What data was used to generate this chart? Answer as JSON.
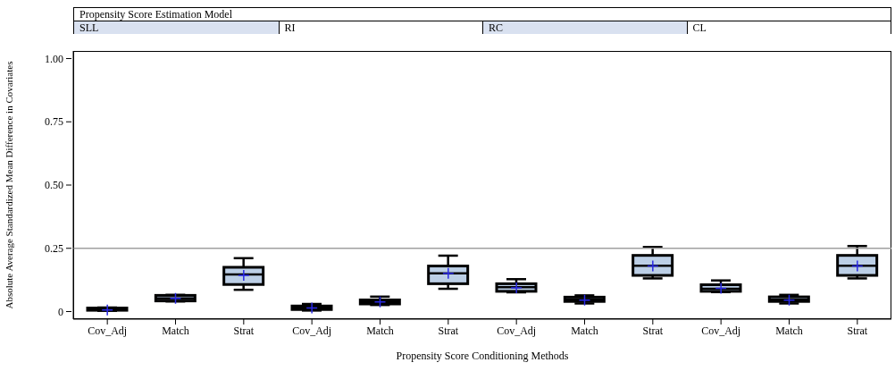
{
  "chart_data": {
    "type": "box",
    "title": "Propensity Score Estimation Model",
    "annotations": [
      "SLL",
      "RI",
      "RC",
      "CL"
    ],
    "xlabel": "Propensity Score Conditioning Methods",
    "ylabel": "Absolute Average Standardized Mean Difference in Covariates",
    "categories": [
      "Cov_Adj",
      "Match",
      "Strat",
      "Cov_Adj",
      "Match",
      "Strat",
      "Cov_Adj",
      "Match",
      "Strat",
      "Cov_Adj",
      "Match",
      "Strat"
    ],
    "color": "#bccfe6",
    "ylim": [
      -0.03,
      1.03
    ],
    "yticks": [
      0,
      0.25,
      {
        "value": 0.5,
        "label": "0.50"
      },
      0.75,
      {
        "value": 1,
        "label": "1.00"
      }
    ],
    "ref_lines": [
      {
        "axis": "y",
        "value": 0.25,
        "color": "#a0a0a0"
      }
    ],
    "boxes": [
      {
        "low": 0.003,
        "q1": 0.005,
        "median": 0.01,
        "q3": 0.014,
        "high": 0.016,
        "mean": 0.006
      },
      {
        "low": 0.04,
        "q1": 0.042,
        "median": 0.052,
        "q3": 0.064,
        "high": 0.066,
        "mean": 0.052
      },
      {
        "low": 0.086,
        "q1": 0.107,
        "median": 0.147,
        "q3": 0.175,
        "high": 0.211,
        "mean": 0.143
      },
      {
        "low": 0.004,
        "q1": 0.008,
        "median": 0.015,
        "q3": 0.022,
        "high": 0.03,
        "mean": 0.014
      },
      {
        "low": 0.026,
        "q1": 0.03,
        "median": 0.038,
        "q3": 0.046,
        "high": 0.059,
        "mean": 0.038
      },
      {
        "low": 0.09,
        "q1": 0.11,
        "median": 0.151,
        "q3": 0.18,
        "high": 0.221,
        "mean": 0.151
      },
      {
        "low": 0.076,
        "q1": 0.08,
        "median": 0.096,
        "q3": 0.11,
        "high": 0.128,
        "mean": 0.094
      },
      {
        "low": 0.032,
        "q1": 0.04,
        "median": 0.047,
        "q3": 0.057,
        "high": 0.064,
        "mean": 0.045
      },
      {
        "low": 0.131,
        "q1": 0.143,
        "median": 0.181,
        "q3": 0.222,
        "high": 0.255,
        "mean": 0.18
      },
      {
        "low": 0.077,
        "q1": 0.08,
        "median": 0.09,
        "q3": 0.106,
        "high": 0.123,
        "mean": 0.092
      },
      {
        "low": 0.032,
        "q1": 0.04,
        "median": 0.047,
        "q3": 0.058,
        "high": 0.066,
        "mean": 0.045
      },
      {
        "low": 0.131,
        "q1": 0.143,
        "median": 0.181,
        "q3": 0.222,
        "high": 0.259,
        "mean": 0.18
      }
    ]
  }
}
